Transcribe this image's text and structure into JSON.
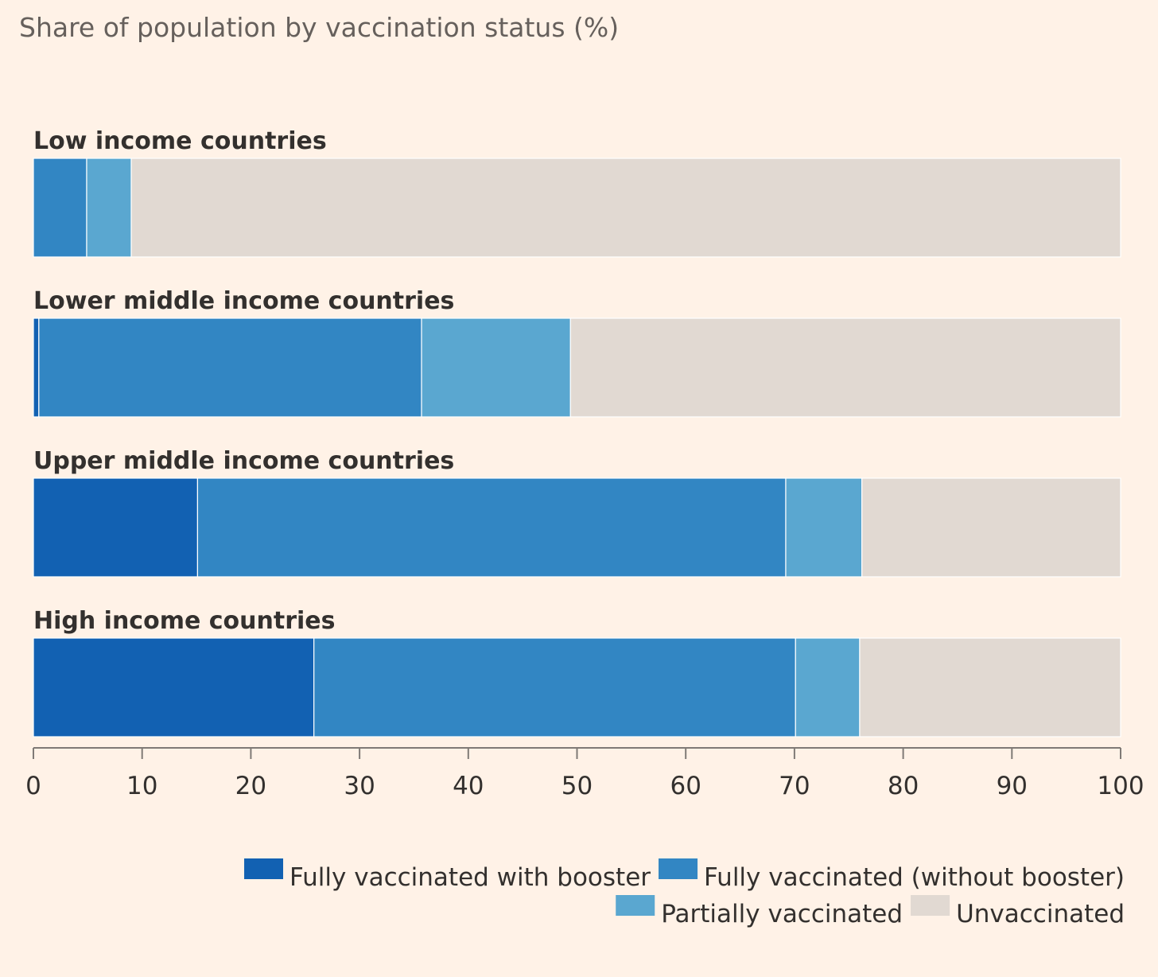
{
  "chart_data": {
    "type": "bar",
    "orientation": "horizontal",
    "stacked": true,
    "title": "Share of population by vaccination status (%)",
    "xlabel": "",
    "ylabel": "",
    "xlim": [
      0,
      100
    ],
    "ticks": [
      "0",
      "10",
      "20",
      "30",
      "40",
      "50",
      "60",
      "70",
      "80",
      "90",
      "100"
    ],
    "grid": false,
    "legend_position": "bottom-right",
    "categories": [
      "Low income countries",
      "Lower middle income countries",
      "Upper middle income countries",
      "High income countries"
    ],
    "series": [
      {
        "name": "Fully vaccinated with booster",
        "color": "#1261b2",
        "values": [
          0,
          0.5,
          15.1,
          25.8
        ]
      },
      {
        "name": "Fully vaccinated (without booster)",
        "color": "#3286c3",
        "values": [
          4.9,
          35.2,
          54.1,
          44.3
        ]
      },
      {
        "name": "Partially vaccinated",
        "color": "#5aa7d0",
        "values": [
          4.1,
          13.7,
          7.0,
          5.9
        ]
      },
      {
        "name": "Unvaccinated",
        "color": "#e1d9d2",
        "values": [
          91.0,
          50.6,
          23.8,
          24.0
        ]
      }
    ]
  },
  "colors": {
    "background": "#fff2e7",
    "axis": "#7f7a76"
  }
}
